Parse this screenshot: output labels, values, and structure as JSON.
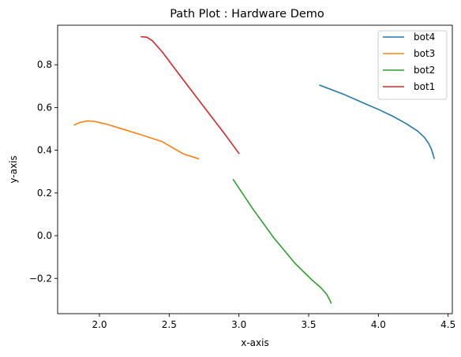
{
  "chart_data": {
    "type": "line",
    "title": "Path Plot : Hardware Demo",
    "xlabel": "x-axis",
    "ylabel": "y-axis",
    "xlim": [
      1.7,
      4.53
    ],
    "ylim": [
      -0.365,
      0.985
    ],
    "xticks": [
      {
        "value": 2.0,
        "label": "2.0"
      },
      {
        "value": 2.5,
        "label": "2.5"
      },
      {
        "value": 3.0,
        "label": "3.0"
      },
      {
        "value": 3.5,
        "label": "3.5"
      },
      {
        "value": 4.0,
        "label": "4.0"
      },
      {
        "value": 4.5,
        "label": "4.5"
      }
    ],
    "yticks": [
      {
        "value": -0.2,
        "label": "−0.2"
      },
      {
        "value": 0.0,
        "label": "0.0"
      },
      {
        "value": 0.2,
        "label": "0.2"
      },
      {
        "value": 0.4,
        "label": "0.4"
      },
      {
        "value": 0.6,
        "label": "0.6"
      },
      {
        "value": 0.8,
        "label": "0.8"
      }
    ],
    "grid": false,
    "legend_position": "top-right",
    "series": [
      {
        "name": "bot4",
        "color": "#1f77b4",
        "points": [
          [
            3.58,
            0.704
          ],
          [
            3.75,
            0.662
          ],
          [
            3.9,
            0.619
          ],
          [
            4.0,
            0.591
          ],
          [
            4.1,
            0.56
          ],
          [
            4.2,
            0.524
          ],
          [
            4.28,
            0.49
          ],
          [
            4.33,
            0.46
          ],
          [
            4.36,
            0.432
          ],
          [
            4.38,
            0.405
          ],
          [
            4.4,
            0.362
          ]
        ]
      },
      {
        "name": "bot3",
        "color": "#ff7f0e",
        "points": [
          [
            1.82,
            0.518
          ],
          [
            1.86,
            0.53
          ],
          [
            1.91,
            0.537
          ],
          [
            1.96,
            0.535
          ],
          [
            2.05,
            0.522
          ],
          [
            2.15,
            0.502
          ],
          [
            2.3,
            0.472
          ],
          [
            2.45,
            0.44
          ],
          [
            2.6,
            0.383
          ],
          [
            2.71,
            0.36
          ]
        ]
      },
      {
        "name": "bot2",
        "color": "#2ca02c",
        "points": [
          [
            2.96,
            0.262
          ],
          [
            3.1,
            0.125
          ],
          [
            3.25,
            -0.01
          ],
          [
            3.4,
            -0.128
          ],
          [
            3.52,
            -0.205
          ],
          [
            3.59,
            -0.245
          ],
          [
            3.63,
            -0.275
          ],
          [
            3.65,
            -0.3
          ],
          [
            3.66,
            -0.315
          ]
        ]
      },
      {
        "name": "bot1",
        "color": "#d62728",
        "points": [
          [
            2.3,
            0.931
          ],
          [
            2.34,
            0.929
          ],
          [
            2.38,
            0.912
          ],
          [
            2.45,
            0.86
          ],
          [
            2.6,
            0.73
          ],
          [
            2.75,
            0.602
          ],
          [
            2.9,
            0.474
          ],
          [
            3.0,
            0.385
          ]
        ]
      }
    ]
  }
}
